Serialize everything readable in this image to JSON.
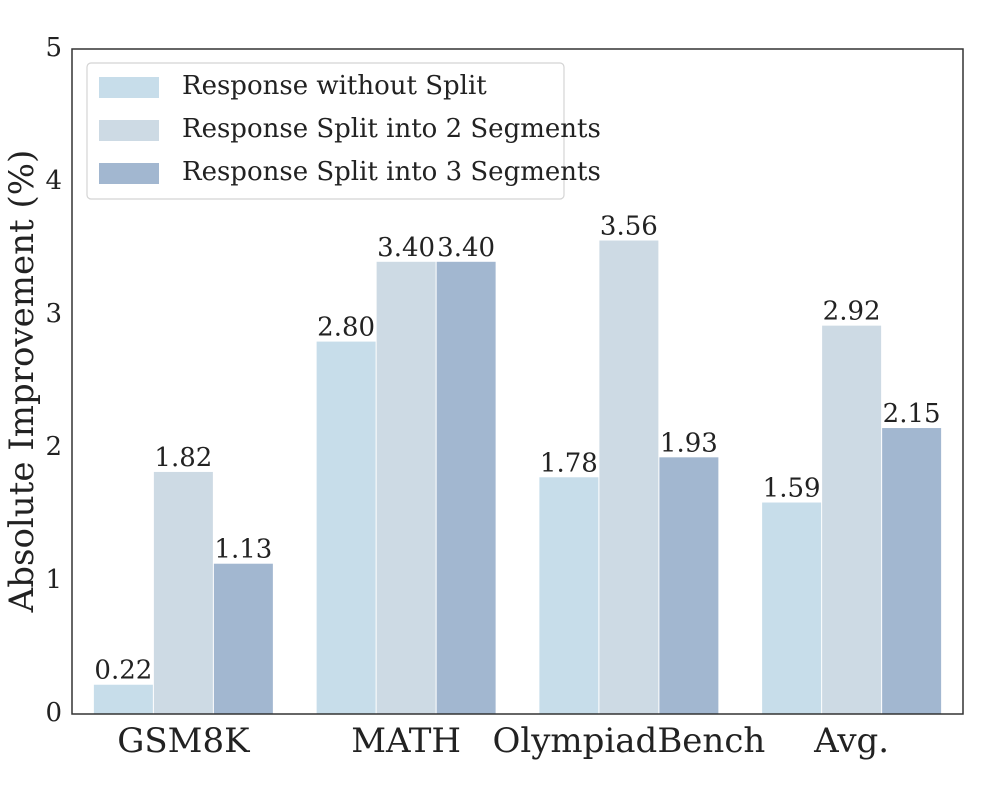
{
  "chart_data": {
    "type": "bar",
    "title": "",
    "xlabel": "",
    "ylabel": "Absolute Improvement (%)",
    "ylim": [
      0,
      5
    ],
    "yticks": [
      "0",
      "1",
      "2",
      "3",
      "4",
      "5"
    ],
    "grid": false,
    "legend_position": "top-left",
    "categories": [
      "GSM8K",
      "MATH",
      "OlympiadBench",
      "Avg."
    ],
    "series": [
      {
        "name": "Response without Split",
        "color": "#c7ddea",
        "values": [
          0.22,
          2.8,
          1.78,
          1.59
        ],
        "labels": [
          "0.22",
          "2.80",
          "1.78",
          "1.59"
        ]
      },
      {
        "name": "Response Split into 2 Segments",
        "color": "#cddae4",
        "values": [
          1.82,
          3.4,
          3.56,
          2.92
        ],
        "labels": [
          "1.82",
          "3.40",
          "3.56",
          "2.92"
        ]
      },
      {
        "name": "Response Split into 3 Segments",
        "color": "#a2b7d0",
        "values": [
          1.13,
          3.4,
          1.93,
          2.15
        ],
        "labels": [
          "1.13",
          "3.40",
          "1.93",
          "2.15"
        ]
      }
    ]
  }
}
